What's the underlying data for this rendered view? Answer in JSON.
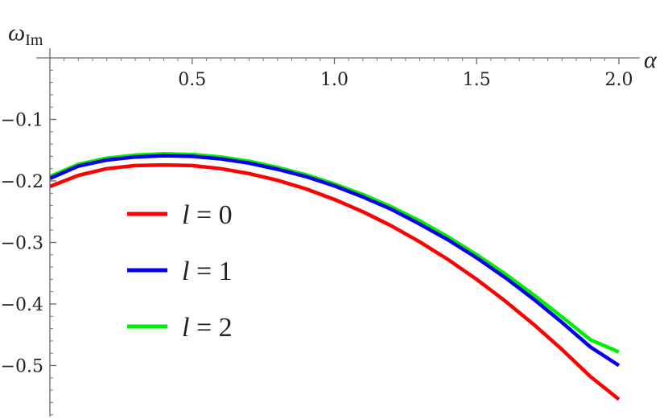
{
  "chart_data": {
    "type": "line",
    "xlabel": "α",
    "ylabel_main": "ω",
    "ylabel_sub": "Im",
    "xlim": [
      0,
      2.0
    ],
    "ylim": [
      -0.58,
      0.0
    ],
    "xticks": [
      {
        "value": 0.5,
        "label": "0.5"
      },
      {
        "value": 1.0,
        "label": "1.0"
      },
      {
        "value": 1.5,
        "label": "1.5"
      },
      {
        "value": 2.0,
        "label": "2.0"
      }
    ],
    "yticks": [
      {
        "value": -0.1,
        "label": "−0.1"
      },
      {
        "value": -0.2,
        "label": "−0.2"
      },
      {
        "value": -0.3,
        "label": "−0.3"
      },
      {
        "value": -0.4,
        "label": "−0.4"
      },
      {
        "value": -0.5,
        "label": "−0.5"
      }
    ],
    "legend_position": "center-left",
    "series": [
      {
        "name": "l = 0",
        "legend_var": "l",
        "legend_value": "= 0",
        "color": "#ff0000",
        "x": [
          0.0,
          0.1,
          0.2,
          0.3,
          0.4,
          0.5,
          0.6,
          0.7,
          0.8,
          0.9,
          1.0,
          1.1,
          1.2,
          1.3,
          1.4,
          1.5,
          1.6,
          1.7,
          1.8,
          1.9,
          2.0
        ],
        "y": [
          -0.209,
          -0.191,
          -0.18,
          -0.175,
          -0.174,
          -0.175,
          -0.18,
          -0.188,
          -0.199,
          -0.213,
          -0.23,
          -0.25,
          -0.273,
          -0.299,
          -0.328,
          -0.36,
          -0.395,
          -0.433,
          -0.474,
          -0.518,
          -0.555
        ]
      },
      {
        "name": "l = 1",
        "legend_var": "l",
        "legend_value": "= 1",
        "color": "#0000ee",
        "x": [
          0.0,
          0.1,
          0.2,
          0.3,
          0.4,
          0.5,
          0.6,
          0.7,
          0.8,
          0.9,
          1.0,
          1.1,
          1.2,
          1.3,
          1.4,
          1.5,
          1.6,
          1.7,
          1.8,
          1.9,
          2.0
        ],
        "y": [
          -0.196,
          -0.176,
          -0.166,
          -0.161,
          -0.159,
          -0.16,
          -0.164,
          -0.171,
          -0.181,
          -0.193,
          -0.208,
          -0.226,
          -0.246,
          -0.27,
          -0.296,
          -0.325,
          -0.357,
          -0.392,
          -0.43,
          -0.47,
          -0.5
        ]
      },
      {
        "name": "l = 2",
        "legend_var": "l",
        "legend_value": "= 2",
        "color": "#00ee00",
        "x": [
          0.0,
          0.1,
          0.2,
          0.3,
          0.4,
          0.5,
          0.6,
          0.7,
          0.8,
          0.9,
          1.0,
          1.1,
          1.2,
          1.3,
          1.4,
          1.5,
          1.6,
          1.7,
          1.8,
          1.9,
          2.0
        ],
        "y": [
          -0.193,
          -0.173,
          -0.163,
          -0.158,
          -0.156,
          -0.157,
          -0.161,
          -0.168,
          -0.178,
          -0.19,
          -0.205,
          -0.222,
          -0.242,
          -0.265,
          -0.291,
          -0.32,
          -0.351,
          -0.385,
          -0.421,
          -0.458,
          -0.478
        ]
      }
    ]
  }
}
